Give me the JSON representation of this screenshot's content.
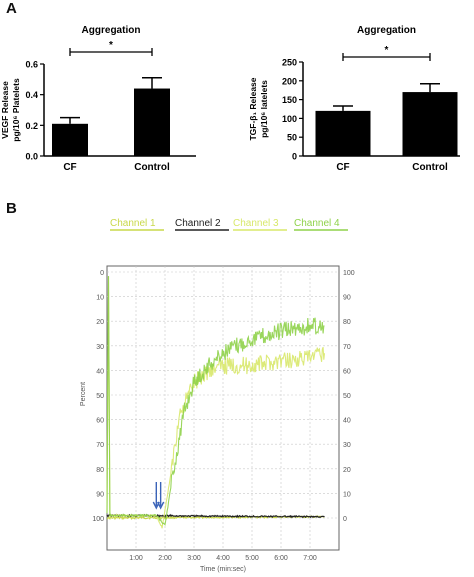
{
  "panels": {
    "a_letter": "A",
    "b_letter": "B"
  },
  "chart_data": [
    {
      "type": "bar",
      "title": "Aggregation",
      "categories": [
        "CF",
        "Control"
      ],
      "values": [
        0.21,
        0.44
      ],
      "errors": [
        0.04,
        0.07
      ],
      "ylabel_line1": "VEGF Release",
      "ylabel_line2": "pg/10⁶ Platelets",
      "ylim": [
        0,
        0.6
      ],
      "yticks": [
        "0.0",
        "0.2",
        "0.4",
        "0.6"
      ],
      "significance": "*",
      "bar_color": "#000000"
    },
    {
      "type": "bar",
      "title": "Aggregation",
      "categories": [
        "CF",
        "Control"
      ],
      "values": [
        120,
        170
      ],
      "errors": [
        13,
        22
      ],
      "ylabel_line1": "TGF-β₁ Release",
      "ylabel_line2": "pg/10⁶ latelets",
      "ylim": [
        0,
        250
      ],
      "yticks": [
        "0",
        "50",
        "100",
        "150",
        "200",
        "250"
      ],
      "significance": "*",
      "bar_color": "#000000"
    },
    {
      "type": "line",
      "xlabel": "Time (min:sec)",
      "ylabel": "Percent",
      "xlim": [
        0,
        8
      ],
      "xticks": [
        "1:00",
        "2:00",
        "3:00",
        "4:00",
        "5:00",
        "6:00",
        "7:00"
      ],
      "left_ticks": [
        "0",
        "10",
        "20",
        "30",
        "40",
        "50",
        "60",
        "70",
        "80",
        "90",
        "100"
      ],
      "right_ticks": [
        "100",
        "90",
        "80",
        "70",
        "60",
        "50",
        "40",
        "30",
        "20",
        "10",
        "0"
      ],
      "grid": true,
      "arrows_at_min": [
        1.7,
        1.85
      ],
      "series": [
        {
          "name": "Channel 1",
          "color": "#c9d84a",
          "points": [
            [
              0,
              100
            ],
            [
              7.5,
              99.5
            ]
          ]
        },
        {
          "name": "Channel 2",
          "color": "#222222",
          "points": [
            [
              0,
              99
            ],
            [
              7.5,
              99.5
            ]
          ]
        },
        {
          "name": "Channel 3",
          "color": "#d8e86a",
          "points": [
            [
              0,
              98
            ],
            [
              0.05,
              2
            ],
            [
              0.1,
              99
            ],
            [
              1.7,
              99
            ],
            [
              1.9,
              104
            ],
            [
              2.1,
              90
            ],
            [
              2.5,
              58
            ],
            [
              3,
              45
            ],
            [
              3.5,
              40
            ],
            [
              4,
              38
            ],
            [
              4.5,
              38
            ],
            [
              5,
              38
            ],
            [
              6,
              36
            ],
            [
              7,
              35
            ],
            [
              7.5,
              33
            ]
          ]
        },
        {
          "name": "Channel 4",
          "color": "#8fd24a",
          "points": [
            [
              0,
              98
            ],
            [
              0.05,
              2
            ],
            [
              0.1,
              99
            ],
            [
              1.7,
              99
            ],
            [
              2.0,
              103
            ],
            [
              2.3,
              80
            ],
            [
              2.7,
              55
            ],
            [
              3,
              45
            ],
            [
              3.5,
              38
            ],
            [
              4,
              33
            ],
            [
              4.5,
              30
            ],
            [
              5,
              27
            ],
            [
              5.5,
              26
            ],
            [
              6,
              24
            ],
            [
              7,
              22
            ],
            [
              7.5,
              22
            ]
          ]
        }
      ]
    }
  ]
}
